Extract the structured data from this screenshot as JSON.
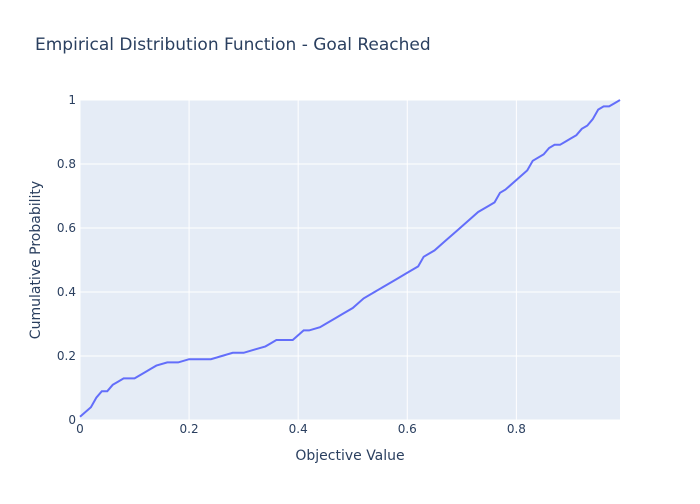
{
  "chart_data": {
    "type": "line",
    "title": "Empirical Distribution Function - Goal Reached",
    "xlabel": "Objective Value",
    "ylabel": "Cumulative Probability",
    "xlim": [
      0,
      0.99
    ],
    "ylim": [
      0,
      1
    ],
    "x_ticks": [
      0,
      0.2,
      0.4,
      0.6,
      0.8
    ],
    "x_tick_labels": [
      "0",
      "0.2",
      "0.4",
      "0.6",
      "0.8"
    ],
    "y_ticks": [
      0,
      0.2,
      0.4,
      0.6,
      0.8,
      1
    ],
    "y_tick_labels": [
      "0",
      "0.2",
      "0.4",
      "0.6",
      "0.8",
      "1"
    ],
    "grid": true,
    "legend": false,
    "colors": {
      "line": "#636efa",
      "plot_bg": "#e5ecf6",
      "grid": "#ffffff",
      "text": "#2a3f5f"
    },
    "series": [
      {
        "x": [
          0,
          0.02,
          0.03,
          0.04,
          0.05,
          0.06,
          0.07,
          0.08,
          0.09,
          0.1,
          0.12,
          0.13,
          0.14,
          0.16,
          0.18,
          0.2,
          0.22,
          0.24,
          0.26,
          0.28,
          0.3,
          0.32,
          0.34,
          0.35,
          0.36,
          0.38,
          0.39,
          0.41,
          0.42,
          0.44,
          0.45,
          0.47,
          0.48,
          0.5,
          0.52,
          0.54,
          0.56,
          0.58,
          0.6,
          0.62,
          0.63,
          0.65,
          0.67,
          0.69,
          0.71,
          0.73,
          0.75,
          0.76,
          0.77,
          0.78,
          0.8,
          0.82,
          0.83,
          0.85,
          0.86,
          0.87,
          0.88,
          0.89,
          0.9,
          0.91,
          0.92,
          0.93,
          0.94,
          0.95,
          0.96,
          0.97,
          0.98,
          0.99
        ],
        "values": [
          0.01,
          0.04,
          0.07,
          0.09,
          0.09,
          0.11,
          0.12,
          0.13,
          0.13,
          0.13,
          0.15,
          0.16,
          0.17,
          0.18,
          0.18,
          0.19,
          0.19,
          0.19,
          0.2,
          0.21,
          0.21,
          0.22,
          0.23,
          0.24,
          0.25,
          0.25,
          0.25,
          0.28,
          0.28,
          0.29,
          0.3,
          0.32,
          0.33,
          0.35,
          0.38,
          0.4,
          0.42,
          0.44,
          0.46,
          0.48,
          0.51,
          0.53,
          0.56,
          0.59,
          0.62,
          0.65,
          0.67,
          0.68,
          0.71,
          0.72,
          0.75,
          0.78,
          0.81,
          0.83,
          0.85,
          0.86,
          0.86,
          0.87,
          0.88,
          0.89,
          0.91,
          0.92,
          0.94,
          0.97,
          0.98,
          0.98,
          0.99,
          1.0
        ]
      }
    ]
  }
}
